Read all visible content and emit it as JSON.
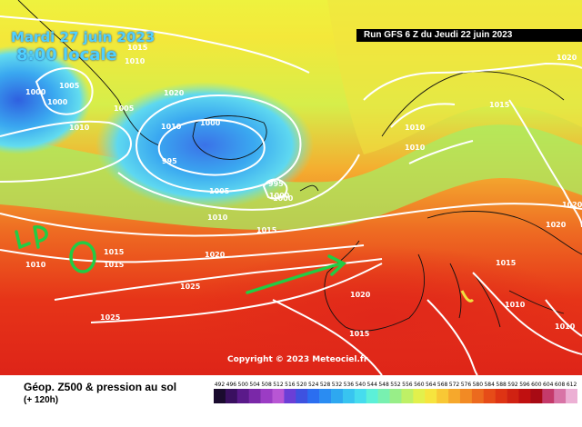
{
  "header": {
    "date_label": "Mardi 27 juin 2023",
    "time_label": "8:00 locale",
    "run_label": "Run GFS 6 Z du Jeudi 22 juin 2023"
  },
  "map": {
    "copyright": "Copyright © 2023 Meteociel.fr",
    "isobar_labels": [
      "1015",
      "1010",
      "1005",
      "1000",
      "1000",
      "1010",
      "1005",
      "1010",
      "1000",
      "995",
      "1000",
      "1005",
      "1010",
      "1015",
      "1020",
      "1025",
      "1025",
      "1020",
      "1015",
      "1015",
      "1020",
      "1020",
      "1015",
      "1010",
      "1010",
      "1015",
      "1010",
      "1010",
      "1015",
      "1010",
      "1020",
      "1020",
      "995",
      "1000"
    ],
    "colors": {
      "contour": "#ffffff",
      "annotation": "#22cc44",
      "low_blue": "#3aa8f0"
    }
  },
  "footer": {
    "title": "Géop. Z500 & pression au sol",
    "subtitle": "(+ 120h)",
    "scale_values": [
      "492",
      "496",
      "500",
      "504",
      "508",
      "512",
      "516",
      "520",
      "524",
      "528",
      "532",
      "536",
      "540",
      "544",
      "548",
      "552",
      "556",
      "560",
      "564",
      "568",
      "572",
      "576",
      "580",
      "584",
      "588",
      "592",
      "596",
      "600",
      "604",
      "608",
      "612"
    ],
    "scale_colors": [
      "#1a0b2e",
      "#3a1060",
      "#5a1a8a",
      "#7a28a8",
      "#9b3cc4",
      "#b856d4",
      "#6b3fd6",
      "#3e52e0",
      "#2b6ef0",
      "#2a8cf2",
      "#2ea8f0",
      "#38c4f0",
      "#46dcee",
      "#5cf0d8",
      "#78f0b0",
      "#98ee88",
      "#bef066",
      "#e2f04c",
      "#f6e43e",
      "#f8c835",
      "#f6a82c",
      "#f28a24",
      "#ec6a1e",
      "#e64c18",
      "#de3414",
      "#d02212",
      "#c01010",
      "#a80a14",
      "#c43a6a",
      "#d874a6",
      "#ecb0d4"
    ]
  }
}
